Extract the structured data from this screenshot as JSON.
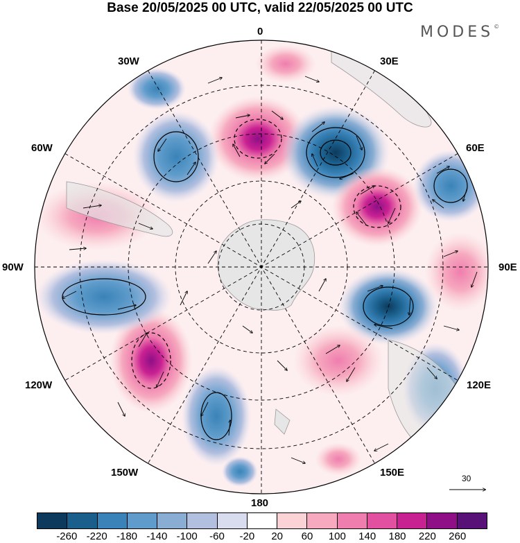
{
  "title": "Base 20/05/2025 00 UTC, valid 22/05/2025 00 UTC",
  "brand": "MODES",
  "brand_mark": "©",
  "longitude_labels": {
    "lon_0": "0",
    "lon_30e": "30E",
    "lon_60e": "60E",
    "lon_90e": "90E",
    "lon_120e": "120E",
    "lon_150e": "150E",
    "lon_180": "180",
    "lon_150w": "150W",
    "lon_120w": "120W",
    "lon_90w": "90W",
    "lon_60w": "60W",
    "lon_30w": "30W"
  },
  "wind_reference_vector": "30",
  "colorbar": {
    "colors": [
      "#0d3a5c",
      "#1a5f8c",
      "#3a83b8",
      "#5f9ccb",
      "#8aadd3",
      "#b2bfdf",
      "#d9dcee",
      "#ffffff",
      "#fbd3d6",
      "#f6a9bf",
      "#ef7eae",
      "#e1519f",
      "#c82192",
      "#8e0f86",
      "#571177"
    ],
    "tick_labels": [
      "-260",
      "-220",
      "-180",
      "-140",
      "-100",
      "-60",
      "-20",
      "20",
      "60",
      "100",
      "140",
      "180",
      "220",
      "260"
    ]
  },
  "anomaly_centers": [
    {
      "name": "positive-anomaly-0",
      "sign": "positive",
      "strength": 220
    },
    {
      "name": "negative-anomaly-30e",
      "sign": "negative",
      "strength": -260
    },
    {
      "name": "positive-anomaly-50e",
      "sign": "positive",
      "strength": 200
    },
    {
      "name": "negative-anomaly-65e",
      "sign": "negative",
      "strength": -180
    },
    {
      "name": "positive-anomaly-90e",
      "sign": "positive",
      "strength": 100
    },
    {
      "name": "negative-anomaly-105e",
      "sign": "negative",
      "strength": -220
    },
    {
      "name": "positive-anomaly-140e",
      "sign": "positive",
      "strength": 100
    },
    {
      "name": "negative-anomaly-120e",
      "sign": "negative",
      "strength": -100
    },
    {
      "name": "negative-anomaly-160w",
      "sign": "negative",
      "strength": -180
    },
    {
      "name": "positive-anomaly-130w",
      "sign": "positive",
      "strength": 160
    },
    {
      "name": "negative-anomaly-90w",
      "sign": "negative",
      "strength": -140
    },
    {
      "name": "positive-anomaly-75w",
      "sign": "positive",
      "strength": 100
    },
    {
      "name": "negative-anomaly-35w",
      "sign": "negative",
      "strength": -180
    }
  ]
}
